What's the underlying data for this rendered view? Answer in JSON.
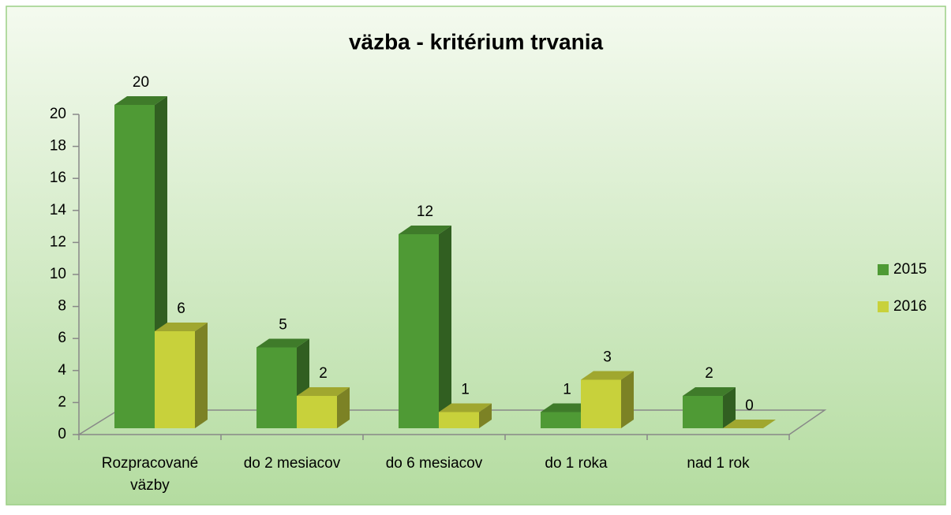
{
  "chart_data": {
    "type": "bar3d",
    "title": "väzba - kritérium trvania",
    "categories": [
      "Rozpracované väzby",
      "do 2 mesiacov",
      "do 6 mesiacov",
      "do 1 roka",
      "nad 1 rok"
    ],
    "series": [
      {
        "name": "2015",
        "color": "#4f9a35",
        "values": [
          20,
          5,
          12,
          1,
          2
        ]
      },
      {
        "name": "2016",
        "color": "#c8d13b",
        "values": [
          6,
          2,
          1,
          3,
          0
        ]
      }
    ],
    "ylim": [
      0,
      20
    ],
    "yticks": [
      0,
      2,
      4,
      6,
      8,
      10,
      12,
      14,
      16,
      18,
      20
    ],
    "legend": "right",
    "grid": false
  }
}
